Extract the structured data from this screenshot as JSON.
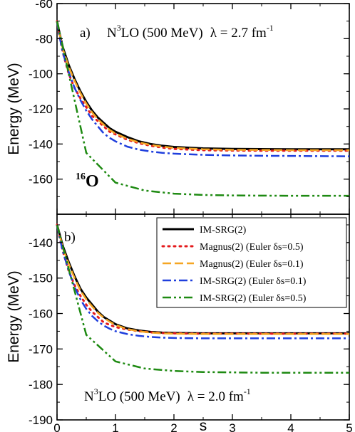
{
  "figure": {
    "xlabel": "s",
    "nucleus_mass": "16",
    "nucleus_symbol": "O"
  },
  "chart_data": [
    {
      "type": "line",
      "panel_label": "a)",
      "annotation": {
        "model": "N",
        "model_sup": "3",
        "model_rest": "LO (500 MeV)",
        "lambda_text": "λ = 2.7 fm",
        "lambda_sup": "-1"
      },
      "ylabel": "Energy (MeV)",
      "xlim": [
        0,
        5
      ],
      "ylim": [
        -180,
        -60
      ],
      "xticks": [
        0,
        1,
        2,
        3,
        4,
        5
      ],
      "yticks": [
        -160,
        -140,
        -120,
        -100,
        -80,
        -60
      ],
      "grid": false,
      "series": [
        {
          "name": "IM-SRG(2)",
          "color": "#000000",
          "style": "solid",
          "x": [
            0,
            0.05,
            0.1,
            0.2,
            0.3,
            0.4,
            0.5,
            0.6,
            0.7,
            0.8,
            0.9,
            1.0,
            1.2,
            1.4,
            1.6,
            1.8,
            2.0,
            2.5,
            3.0,
            3.5,
            4.0,
            4.5,
            5.0
          ],
          "y": [
            -70,
            -78,
            -85,
            -95,
            -103,
            -110,
            -116,
            -121,
            -125,
            -128,
            -131,
            -133,
            -136,
            -138.5,
            -140,
            -141,
            -141.7,
            -142.5,
            -142.8,
            -142.9,
            -143,
            -143,
            -143
          ]
        },
        {
          "name": "Magnus(2) (Euler δs=0.5)",
          "color": "#e41a1c",
          "style": "dotted",
          "x": [
            0,
            0.05,
            0.1,
            0.2,
            0.3,
            0.4,
            0.5,
            0.6,
            0.7,
            0.8,
            0.9,
            1.0,
            1.2,
            1.4,
            1.6,
            1.8,
            2.0,
            2.5,
            3.0,
            3.5,
            4.0,
            4.5,
            5.0
          ],
          "y": [
            -70,
            -80,
            -88,
            -100,
            -108,
            -114,
            -119,
            -124,
            -127,
            -130,
            -133,
            -134.5,
            -137.5,
            -139.5,
            -141,
            -142,
            -142.8,
            -143.5,
            -143.7,
            -143.8,
            -143.8,
            -143.8,
            -143.8
          ]
        },
        {
          "name": "Magnus(2) (Euler δs=0.1)",
          "color": "#f5a623",
          "style": "dashed",
          "x": [
            0,
            0.05,
            0.1,
            0.2,
            0.3,
            0.4,
            0.5,
            0.6,
            0.7,
            0.8,
            0.9,
            1.0,
            1.2,
            1.4,
            1.6,
            1.8,
            2.0,
            2.5,
            3.0,
            3.5,
            4.0,
            4.5,
            5.0
          ],
          "y": [
            -70,
            -78.5,
            -86,
            -96,
            -104,
            -111,
            -117,
            -122,
            -126,
            -129,
            -132,
            -134,
            -137,
            -139,
            -140.5,
            -141.5,
            -142.2,
            -143,
            -143.3,
            -143.4,
            -143.5,
            -143.5,
            -143.5
          ]
        },
        {
          "name": "IM-SRG(2) (Euler δs=0.1)",
          "color": "#1f3fdd",
          "style": "dashdot",
          "x": [
            0,
            0.05,
            0.1,
            0.2,
            0.3,
            0.4,
            0.5,
            0.6,
            0.7,
            0.8,
            0.9,
            1.0,
            1.2,
            1.4,
            1.6,
            1.8,
            2.0,
            2.5,
            3.0,
            3.5,
            4.0,
            4.5,
            5.0
          ],
          "y": [
            -70,
            -80,
            -88,
            -99,
            -108,
            -115,
            -121,
            -126,
            -130,
            -134,
            -136.5,
            -138.5,
            -141.5,
            -143.2,
            -144.3,
            -145,
            -145.5,
            -146.2,
            -146.5,
            -146.7,
            -146.8,
            -146.9,
            -147
          ]
        },
        {
          "name": "IM-SRG(2) (Euler δs=0.5)",
          "color": "#1e8a12",
          "style": "dashdotdot",
          "x": [
            0,
            0.5,
            1.0,
            1.5,
            2.0,
            2.5,
            3.0,
            3.5,
            4.0,
            4.5,
            5.0
          ],
          "y": [
            -70,
            -145,
            -162,
            -166.5,
            -168.3,
            -169,
            -169.3,
            -169.4,
            -169.5,
            -169.5,
            -169.5
          ]
        }
      ]
    },
    {
      "type": "line",
      "panel_label": "b)",
      "annotation": {
        "model": "N",
        "model_sup": "3",
        "model_rest": "LO (500 MeV)",
        "lambda_text": "λ = 2.0 fm",
        "lambda_sup": "-1"
      },
      "ylabel": "Energy (MeV)",
      "xlim": [
        0,
        5
      ],
      "ylim": [
        -190,
        -132
      ],
      "xticks": [
        0,
        1,
        2,
        3,
        4,
        5
      ],
      "yticks": [
        -190,
        -180,
        -170,
        -160,
        -150,
        -140
      ],
      "grid": false,
      "legend_position": "top-right",
      "series": [
        {
          "name": "IM-SRG(2)",
          "color": "#000000",
          "style": "solid",
          "x": [
            0,
            0.05,
            0.1,
            0.2,
            0.3,
            0.4,
            0.5,
            0.6,
            0.7,
            0.8,
            0.9,
            1.0,
            1.2,
            1.4,
            1.6,
            1.8,
            2.0,
            2.5,
            3.0,
            3.5,
            4.0,
            4.5,
            5.0
          ],
          "y": [
            -135,
            -138,
            -141,
            -145.5,
            -149.5,
            -153,
            -155.5,
            -157.5,
            -159.5,
            -161,
            -162,
            -163,
            -164.2,
            -164.8,
            -165.2,
            -165.4,
            -165.5,
            -165.6,
            -165.6,
            -165.6,
            -165.6,
            -165.6,
            -165.6
          ]
        },
        {
          "name": "Magnus(2) (Euler δs=0.5)",
          "color": "#e41a1c",
          "style": "dotted",
          "x": [
            0,
            0.05,
            0.1,
            0.2,
            0.3,
            0.4,
            0.5,
            0.6,
            0.7,
            0.8,
            0.9,
            1.0,
            1.2,
            1.4,
            1.6,
            1.8,
            2.0,
            2.5,
            3.0,
            3.5,
            4.0,
            4.5,
            5.0
          ],
          "y": [
            -135,
            -139,
            -142.5,
            -148,
            -152,
            -155,
            -157.5,
            -159.5,
            -161,
            -162.5,
            -163.2,
            -163.8,
            -164.5,
            -165,
            -165.3,
            -165.5,
            -165.6,
            -165.7,
            -165.7,
            -165.7,
            -165.7,
            -165.7,
            -165.7
          ]
        },
        {
          "name": "Magnus(2) (Euler δs=0.1)",
          "color": "#f5a623",
          "style": "dashed",
          "x": [
            0,
            0.05,
            0.1,
            0.2,
            0.3,
            0.4,
            0.5,
            0.6,
            0.7,
            0.8,
            0.9,
            1.0,
            1.2,
            1.4,
            1.6,
            1.8,
            2.0,
            2.5,
            3.0,
            3.5,
            4.0,
            4.5,
            5.0
          ],
          "y": [
            -135,
            -138.2,
            -141.5,
            -146,
            -150,
            -153.5,
            -156,
            -158,
            -159.8,
            -161.2,
            -162.3,
            -163.2,
            -164.4,
            -165,
            -165.4,
            -165.6,
            -165.7,
            -165.8,
            -165.8,
            -165.8,
            -165.8,
            -165.8,
            -165.8
          ]
        },
        {
          "name": "IM-SRG(2) (Euler δs=0.1)",
          "color": "#1f3fdd",
          "style": "dashdot",
          "x": [
            0,
            0.05,
            0.1,
            0.2,
            0.3,
            0.4,
            0.5,
            0.6,
            0.7,
            0.8,
            0.9,
            1.0,
            1.2,
            1.4,
            1.6,
            1.8,
            2.0,
            2.5,
            3.0,
            3.5,
            4.0,
            4.5,
            5.0
          ],
          "y": [
            -135,
            -139,
            -142.5,
            -148,
            -152.5,
            -156,
            -158.7,
            -160.7,
            -162.2,
            -163.4,
            -164.3,
            -165,
            -165.8,
            -166.3,
            -166.6,
            -166.8,
            -166.9,
            -167,
            -167,
            -167,
            -167,
            -167,
            -167
          ]
        },
        {
          "name": "IM-SRG(2) (Euler δs=0.5)",
          "color": "#1e8a12",
          "style": "dashdotdot",
          "x": [
            0,
            0.5,
            1.0,
            1.5,
            2.0,
            2.5,
            3.0,
            3.5,
            4.0,
            4.5,
            5.0
          ],
          "y": [
            -135,
            -166,
            -173.5,
            -175.5,
            -176.2,
            -176.5,
            -176.6,
            -176.7,
            -176.7,
            -176.7,
            -176.7
          ]
        }
      ]
    }
  ]
}
